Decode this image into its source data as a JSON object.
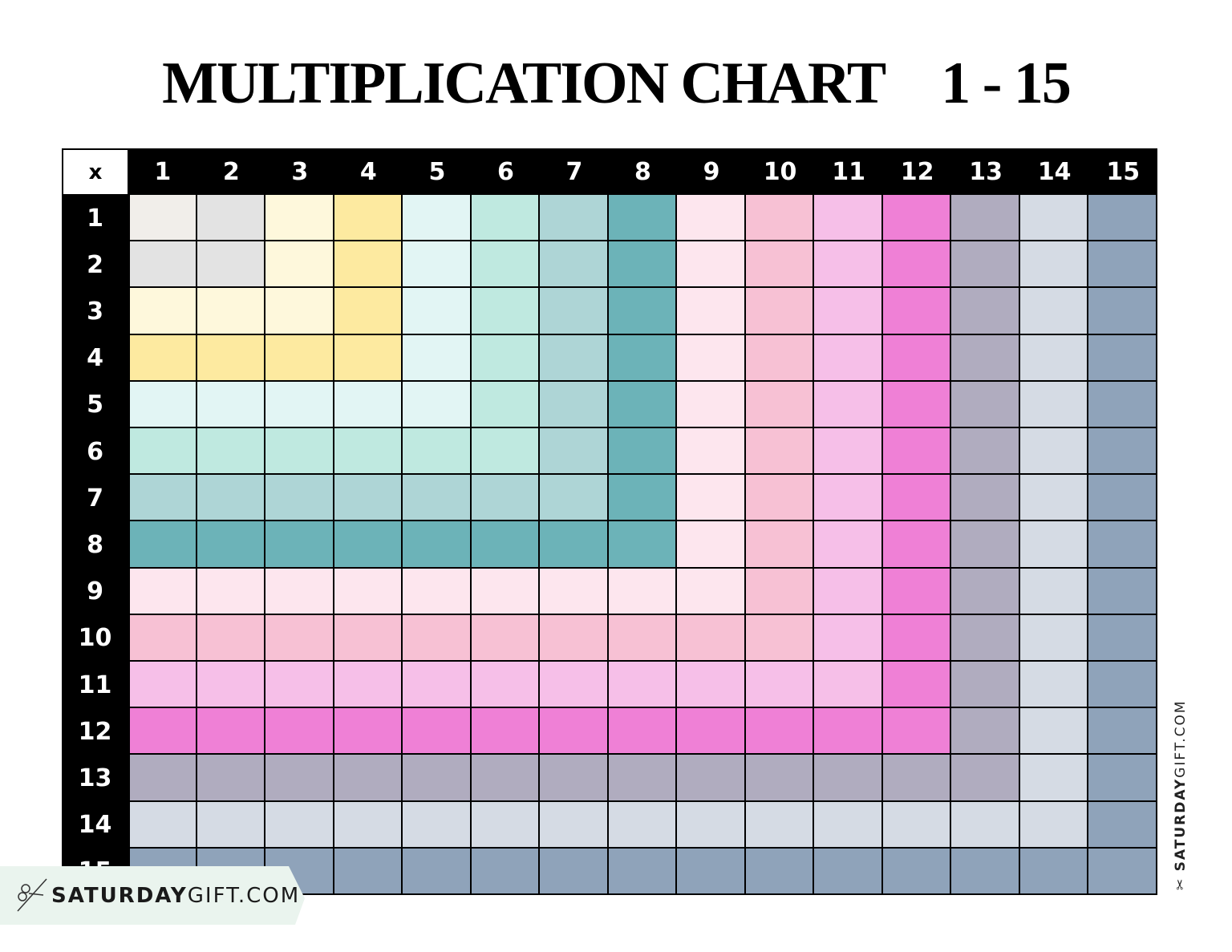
{
  "title": {
    "main": "MULTIPLICATION CHART",
    "range": "1 - 15"
  },
  "table": {
    "corner_label": "x",
    "column_headers": [
      "1",
      "2",
      "3",
      "4",
      "5",
      "6",
      "7",
      "8",
      "9",
      "10",
      "11",
      "12",
      "13",
      "14",
      "15"
    ],
    "row_headers": [
      "1",
      "2",
      "3",
      "4",
      "5",
      "6",
      "7",
      "8",
      "9",
      "10",
      "11",
      "12",
      "13",
      "14",
      "15"
    ],
    "cells_filled": false,
    "level_colors": [
      "#f1eeea",
      "#e3e3e3",
      "#fef8dc",
      "#fdeaa0",
      "#e2f5f4",
      "#bfe9e0",
      "#aed5d6",
      "#6cb3b8",
      "#fde6ee",
      "#f7c1d4",
      "#f6bfe8",
      "#ef80d6",
      "#b0acbf",
      "#d5dbe4",
      "#8fa3ba"
    ]
  },
  "branding": {
    "bold": "SATURDAY",
    "light": "GIFT.COM",
    "icon": "bow-scissors-icon",
    "banner_color": "#eaf4ee"
  }
}
